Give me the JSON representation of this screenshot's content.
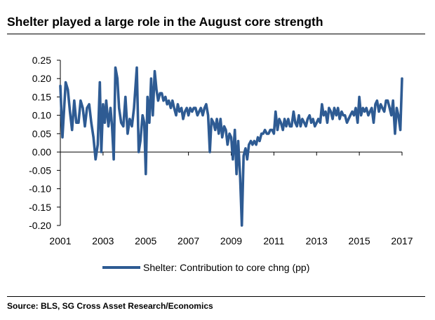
{
  "header": {
    "title": "Shelter played a large role in the August core strength"
  },
  "footer": {
    "source": "Source: BLS, SG Cross Asset Research/Economics"
  },
  "colors": {
    "series": "#2e5b93",
    "axis": "#000000"
  },
  "chart_data": {
    "type": "line",
    "title": "Shelter played a large role in the August core strength",
    "xlabel": "",
    "ylabel": "",
    "xlim": [
      2001.0,
      2017.0
    ],
    "ylim": [
      -0.2,
      0.25
    ],
    "x_ticks": [
      "2001",
      "2003",
      "2005",
      "2007",
      "2009",
      "2011",
      "2013",
      "2015",
      "2017"
    ],
    "y_ticks": [
      "0.25",
      "0.20",
      "0.15",
      "0.10",
      "0.05",
      "0.00",
      "-0.05",
      "-0.10",
      "-0.15",
      "-0.20"
    ],
    "grid": false,
    "legend": "bottom-center",
    "series": [
      {
        "name": "Shelter: Contribution to core chng (pp)",
        "points": [
          [
            2001.0,
            0.18
          ],
          [
            2001.1,
            0.04
          ],
          [
            2001.25,
            0.19
          ],
          [
            2001.35,
            0.17
          ],
          [
            2001.45,
            0.11
          ],
          [
            2001.55,
            0.06
          ],
          [
            2001.65,
            0.14
          ],
          [
            2001.75,
            0.08
          ],
          [
            2001.85,
            0.08
          ],
          [
            2001.95,
            0.14
          ],
          [
            2002.05,
            0.12
          ],
          [
            2002.15,
            0.07
          ],
          [
            2002.25,
            0.12
          ],
          [
            2002.35,
            0.13
          ],
          [
            2002.45,
            0.08
          ],
          [
            2002.55,
            0.04
          ],
          [
            2002.65,
            -0.02
          ],
          [
            2002.75,
            0.02
          ],
          [
            2002.85,
            0.19
          ],
          [
            2002.92,
            0.0
          ],
          [
            2003.0,
            0.13
          ],
          [
            2003.08,
            0.08
          ],
          [
            2003.15,
            0.14
          ],
          [
            2003.25,
            0.07
          ],
          [
            2003.35,
            0.12
          ],
          [
            2003.42,
            0.07
          ],
          [
            2003.5,
            -0.02
          ],
          [
            2003.58,
            0.23
          ],
          [
            2003.67,
            0.2
          ],
          [
            2003.75,
            0.12
          ],
          [
            2003.85,
            0.08
          ],
          [
            2003.95,
            0.07
          ],
          [
            2004.05,
            0.15
          ],
          [
            2004.15,
            0.05
          ],
          [
            2004.25,
            0.09
          ],
          [
            2004.35,
            0.07
          ],
          [
            2004.45,
            0.12
          ],
          [
            2004.58,
            0.23
          ],
          [
            2004.67,
            0.0
          ],
          [
            2004.75,
            0.03
          ],
          [
            2004.85,
            0.1
          ],
          [
            2004.93,
            0.08
          ],
          [
            2005.0,
            -0.06
          ],
          [
            2005.08,
            0.15
          ],
          [
            2005.17,
            0.08
          ],
          [
            2005.25,
            0.2
          ],
          [
            2005.33,
            0.1
          ],
          [
            2005.42,
            0.22
          ],
          [
            2005.5,
            0.17
          ],
          [
            2005.58,
            0.14
          ],
          [
            2005.67,
            0.16
          ],
          [
            2005.75,
            0.16
          ],
          [
            2005.83,
            0.14
          ],
          [
            2005.92,
            0.15
          ],
          [
            2006.0,
            0.13
          ],
          [
            2006.08,
            0.14
          ],
          [
            2006.17,
            0.12
          ],
          [
            2006.25,
            0.14
          ],
          [
            2006.33,
            0.12
          ],
          [
            2006.42,
            0.1
          ],
          [
            2006.5,
            0.13
          ],
          [
            2006.58,
            0.11
          ],
          [
            2006.67,
            0.12
          ],
          [
            2006.75,
            0.09
          ],
          [
            2006.83,
            0.11
          ],
          [
            2006.92,
            0.12
          ],
          [
            2007.0,
            0.1
          ],
          [
            2007.08,
            0.12
          ],
          [
            2007.17,
            0.11
          ],
          [
            2007.25,
            0.12
          ],
          [
            2007.33,
            0.12
          ],
          [
            2007.42,
            0.1
          ],
          [
            2007.5,
            0.11
          ],
          [
            2007.58,
            0.12
          ],
          [
            2007.67,
            0.1
          ],
          [
            2007.75,
            0.12
          ],
          [
            2007.83,
            0.13
          ],
          [
            2007.92,
            0.1
          ],
          [
            2008.0,
            0.0
          ],
          [
            2008.08,
            0.09
          ],
          [
            2008.17,
            0.08
          ],
          [
            2008.25,
            0.06
          ],
          [
            2008.33,
            0.09
          ],
          [
            2008.42,
            0.05
          ],
          [
            2008.5,
            0.09
          ],
          [
            2008.58,
            0.04
          ],
          [
            2008.67,
            0.07
          ],
          [
            2008.75,
            0.06
          ],
          [
            2008.83,
            0.02
          ],
          [
            2008.92,
            0.05
          ],
          [
            2009.0,
            0.04
          ],
          [
            2009.08,
            -0.02
          ],
          [
            2009.17,
            0.06
          ],
          [
            2009.25,
            -0.06
          ],
          [
            2009.33,
            0.03
          ],
          [
            2009.42,
            -0.07
          ],
          [
            2009.5,
            -0.2
          ],
          [
            2009.58,
            -0.01
          ],
          [
            2009.67,
            0.01
          ],
          [
            2009.75,
            -0.02
          ],
          [
            2009.83,
            0.02
          ],
          [
            2009.92,
            0.03
          ],
          [
            2010.0,
            0.02
          ],
          [
            2010.08,
            0.03
          ],
          [
            2010.17,
            0.02
          ],
          [
            2010.25,
            0.04
          ],
          [
            2010.33,
            0.03
          ],
          [
            2010.42,
            0.05
          ],
          [
            2010.5,
            0.05
          ],
          [
            2010.58,
            0.06
          ],
          [
            2010.67,
            0.05
          ],
          [
            2010.75,
            0.05
          ],
          [
            2010.83,
            0.06
          ],
          [
            2010.92,
            0.06
          ],
          [
            2011.0,
            0.05
          ],
          [
            2011.08,
            0.11
          ],
          [
            2011.17,
            0.06
          ],
          [
            2011.25,
            0.09
          ],
          [
            2011.33,
            0.08
          ],
          [
            2011.42,
            0.06
          ],
          [
            2011.5,
            0.09
          ],
          [
            2011.58,
            0.07
          ],
          [
            2011.67,
            0.09
          ],
          [
            2011.75,
            0.07
          ],
          [
            2011.83,
            0.07
          ],
          [
            2011.92,
            0.11
          ],
          [
            2012.0,
            0.08
          ],
          [
            2012.08,
            0.07
          ],
          [
            2012.17,
            0.1
          ],
          [
            2012.25,
            0.07
          ],
          [
            2012.33,
            0.09
          ],
          [
            2012.42,
            0.08
          ],
          [
            2012.5,
            0.07
          ],
          [
            2012.58,
            0.09
          ],
          [
            2012.67,
            0.1
          ],
          [
            2012.75,
            0.08
          ],
          [
            2012.83,
            0.09
          ],
          [
            2012.92,
            0.07
          ],
          [
            2013.0,
            0.08
          ],
          [
            2013.08,
            0.09
          ],
          [
            2013.17,
            0.08
          ],
          [
            2013.25,
            0.13
          ],
          [
            2013.33,
            0.1
          ],
          [
            2013.42,
            0.11
          ],
          [
            2013.5,
            0.08
          ],
          [
            2013.58,
            0.12
          ],
          [
            2013.67,
            0.11
          ],
          [
            2013.75,
            0.09
          ],
          [
            2013.83,
            0.12
          ],
          [
            2013.92,
            0.1
          ],
          [
            2014.0,
            0.12
          ],
          [
            2014.08,
            0.09
          ],
          [
            2014.17,
            0.11
          ],
          [
            2014.25,
            0.1
          ],
          [
            2014.33,
            0.1
          ],
          [
            2014.42,
            0.08
          ],
          [
            2014.5,
            0.09
          ],
          [
            2014.58,
            0.1
          ],
          [
            2014.67,
            0.11
          ],
          [
            2014.75,
            0.1
          ],
          [
            2014.83,
            0.12
          ],
          [
            2014.92,
            0.08
          ],
          [
            2015.0,
            0.15
          ],
          [
            2015.08,
            0.1
          ],
          [
            2015.17,
            0.12
          ],
          [
            2015.25,
            0.11
          ],
          [
            2015.33,
            0.12
          ],
          [
            2015.42,
            0.1
          ],
          [
            2015.5,
            0.11
          ],
          [
            2015.58,
            0.12
          ],
          [
            2015.67,
            0.08
          ],
          [
            2015.75,
            0.13
          ],
          [
            2015.83,
            0.14
          ],
          [
            2015.92,
            0.11
          ],
          [
            2016.0,
            0.13
          ],
          [
            2016.08,
            0.12
          ],
          [
            2016.17,
            0.11
          ],
          [
            2016.25,
            0.14
          ],
          [
            2016.33,
            0.14
          ],
          [
            2016.42,
            0.12
          ],
          [
            2016.5,
            0.1
          ],
          [
            2016.58,
            0.14
          ],
          [
            2016.67,
            0.05
          ],
          [
            2016.75,
            0.12
          ],
          [
            2016.83,
            0.1
          ],
          [
            2016.92,
            0.06
          ],
          [
            2017.0,
            0.2
          ]
        ]
      }
    ]
  }
}
